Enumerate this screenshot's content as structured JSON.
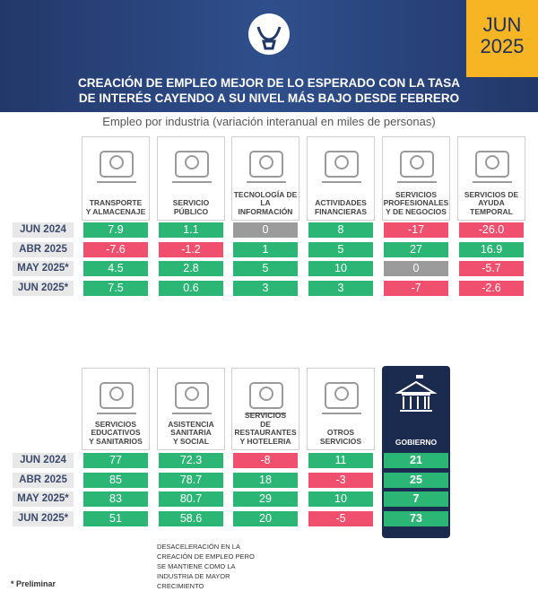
{
  "header": {
    "badge_month": "JUN",
    "badge_year": "2025",
    "title_lines": [
      "CREACIÓN DE EMPLEO MEJOR DE LO ESPERADO CON LA TASA",
      "DE INTERÉS CAYENDO A SU NIVEL MÁS BAJO DESDE FEBRERO"
    ]
  },
  "subtitle": "Empleo por industria (variación interanual en miles de personas)",
  "sections": [
    {
      "row_labels": [
        "JUN 2024",
        "ABR 2025",
        "MAY 2025*",
        "JUN 2025*"
      ],
      "columns": [
        {
          "label_lines": [
            "TRANSPORTE",
            "Y ALMACENAJE"
          ],
          "values": [
            "7.9",
            "-7.6",
            "4.5",
            "7.5"
          ]
        },
        {
          "label_lines": [
            "SERVICIO",
            "PÚBLICO"
          ],
          "values": [
            "1.1",
            "-1.2",
            "2.8",
            "0.6"
          ]
        },
        {
          "label_lines": [
            "TECNOLOGÍA DE",
            "LA INFORMACIÓN"
          ],
          "values": [
            "0",
            "1",
            "5",
            "3"
          ]
        },
        {
          "label_lines": [
            "ACTIVIDADES",
            "FINANCIERAS"
          ],
          "values": [
            "8",
            "5",
            "10",
            "3"
          ]
        },
        {
          "label_lines": [
            "SERVICIOS",
            "PROFESIONALES",
            "Y DE NEGOCIOS"
          ],
          "values": [
            "-17",
            "27",
            "0",
            "-7"
          ]
        },
        {
          "label_lines": [
            "SERVICIOS DE",
            "AYUDA TEMPORAL"
          ],
          "values": [
            "-26.0",
            "16.9",
            "-5.7",
            "-2.6"
          ]
        }
      ]
    },
    {
      "row_labels": [
        "JUN 2024",
        "ABR 2025",
        "MAY 2025*",
        "JUN 2025*"
      ],
      "columns": [
        {
          "label_lines": [
            "SERVICIOS",
            "EDUCATIVOS",
            "Y SANITARIOS"
          ],
          "values": [
            "77",
            "85",
            "83",
            "51"
          ]
        },
        {
          "label_lines": [
            "ASISTENCIA",
            "SANITARIA",
            "Y SOCIAL"
          ],
          "values": [
            "72.3",
            "78.7",
            "80.7",
            "58.6"
          ]
        },
        {
          "label_lines": [
            "SERVICIOS",
            "DE RESTAURANTES",
            "Y HOTELERIA"
          ],
          "values": [
            "-8",
            "18",
            "29",
            "20"
          ]
        },
        {
          "label_lines": [
            "OTROS",
            "SERVICIOS"
          ],
          "values": [
            "11",
            "-3",
            "10",
            "-5"
          ]
        },
        {
          "label_lines": [
            "GOBIERNO"
          ],
          "values": [
            "21",
            "25",
            "7",
            "73"
          ]
        }
      ]
    }
  ],
  "note_lines": [
    "DESACELERACIÓN EN LA",
    "CREACIÓN DE EMPLEO PERO",
    "SE MANTIENE COMO LA",
    "INDUSTRIA DE MAYOR",
    "CRECIMIENTO"
  ],
  "footnote": "* Preliminar"
}
